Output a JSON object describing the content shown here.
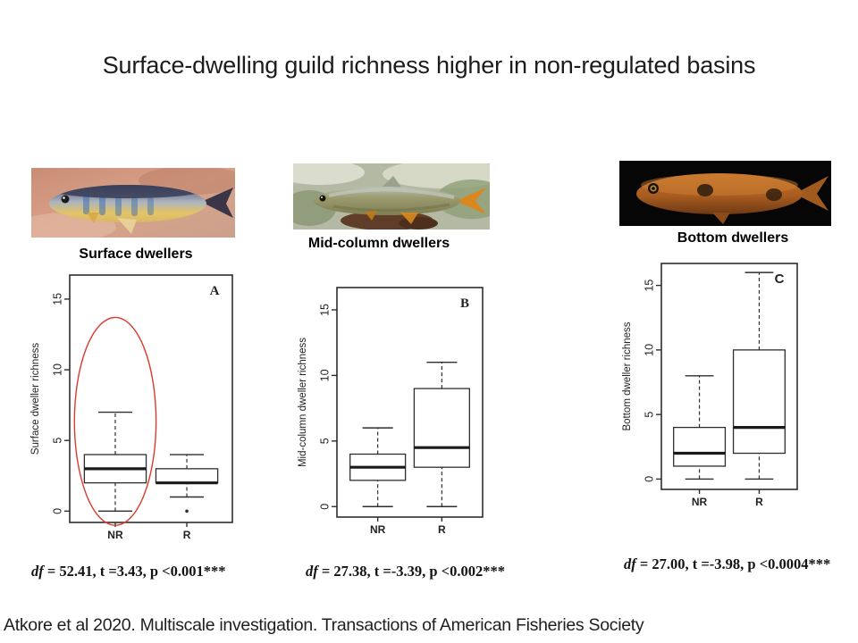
{
  "slide": {
    "title": "Surface-dwelling guild richness higher in non-regulated basins",
    "citation": "Atkore et al 2020. Multiscale investigation. Transactions of American Fisheries Society"
  },
  "guilds": [
    {
      "label": "Surface dwellers"
    },
    {
      "label": "Mid-column dwellers"
    },
    {
      "label": "Bottom dwellers"
    }
  ],
  "colors": {
    "highlight_ellipse": "#dd3a2e",
    "plot_line": "#2e2e2e"
  },
  "chart_data": [
    {
      "type": "boxplot",
      "panel_letter": "A",
      "ylabel": "Surface dweller richness",
      "categories": [
        "NR",
        "R"
      ],
      "yticks": [
        0,
        5,
        10,
        15
      ],
      "ylim": [
        -0.8,
        16.7
      ],
      "series": [
        {
          "category": "NR",
          "whisker_low": 0,
          "q1": 2,
          "median": 3,
          "q3": 4,
          "whisker_high": 7,
          "outliers": []
        },
        {
          "category": "R",
          "whisker_low": 1,
          "q1": 2,
          "median": 2,
          "q3": 3,
          "whisker_high": 4,
          "outliers": [
            0
          ]
        }
      ],
      "annotation_ellipse": {
        "on_category": "NR",
        "y_top": 13.7,
        "y_bottom": -1.0,
        "color": "#dd3a2e"
      },
      "stats_df": "df",
      "stats_rest": " = 52.41, t =3.43, p <0.001***"
    },
    {
      "type": "boxplot",
      "panel_letter": "B",
      "ylabel": "Mid-column dweller richness",
      "categories": [
        "NR",
        "R"
      ],
      "yticks": [
        0,
        5,
        10,
        15
      ],
      "ylim": [
        -0.8,
        16.7
      ],
      "series": [
        {
          "category": "NR",
          "whisker_low": 0,
          "q1": 2,
          "median": 3,
          "q3": 4,
          "whisker_high": 6,
          "outliers": []
        },
        {
          "category": "R",
          "whisker_low": 0,
          "q1": 3,
          "median": 4.5,
          "q3": 9,
          "whisker_high": 11,
          "outliers": []
        }
      ],
      "annotation_ellipse": null,
      "stats_df": "df",
      "stats_rest": " = 27.38, t =-3.39, p <0.002***"
    },
    {
      "type": "boxplot",
      "panel_letter": "C",
      "ylabel": "Bottom dweller richness",
      "categories": [
        "NR",
        "R"
      ],
      "yticks": [
        0,
        5,
        10,
        15
      ],
      "ylim": [
        -0.8,
        16.7
      ],
      "series": [
        {
          "category": "NR",
          "whisker_low": 0,
          "q1": 1,
          "median": 2,
          "q3": 4,
          "whisker_high": 8,
          "outliers": []
        },
        {
          "category": "R",
          "whisker_low": 0,
          "q1": 2,
          "median": 4,
          "q3": 10,
          "whisker_high": 16,
          "outliers": []
        }
      ],
      "annotation_ellipse": null,
      "stats_df": "df",
      "stats_rest": " = 27.00, t =-3.98, p <0.0004***"
    }
  ]
}
